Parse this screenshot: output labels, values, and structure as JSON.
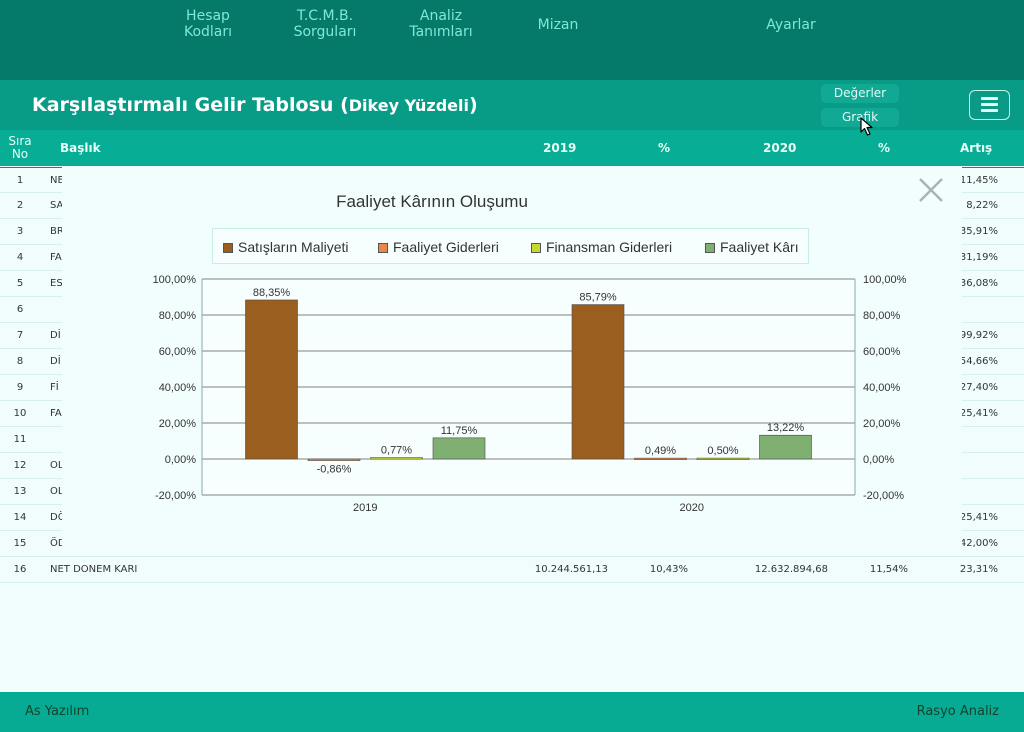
{
  "nav": {
    "hesap": "Hesap\nKodları",
    "tcmb": "T.C.M.B.\nSorguları",
    "analiz": "Analiz\nTanımları",
    "mizan": "Mizan",
    "ayarlar": "Ayarlar"
  },
  "header": {
    "title_main": "Karşılaştırmalı Gelir Tablosu",
    "title_paren_open": "(",
    "title_sub": "Dikey Yüzdeli",
    "title_paren_close": ")",
    "values_button": "Değerler",
    "chart_button": "Grafik"
  },
  "table": {
    "headers": {
      "sira": "Sıra\nNo",
      "baslik": "Başlık",
      "y2019": "2019",
      "pct1": "%",
      "y2020": "2020",
      "pct2": "%",
      "artis": "Artış"
    },
    "rows": [
      {
        "no": "1",
        "title": "NE",
        "artis": "11,45%"
      },
      {
        "no": "2",
        "title": "SA",
        "artis": "8,22%"
      },
      {
        "no": "3",
        "title": "BR",
        "artis": "35,91%"
      },
      {
        "no": "4",
        "title": "FA",
        "artis": "31,19%"
      },
      {
        "no": "5",
        "title": "ES",
        "artis": "36,08%"
      },
      {
        "no": "6",
        "title": "",
        "artis": ""
      },
      {
        "no": "7",
        "title": "Dİ",
        "artis": "99,92%"
      },
      {
        "no": "8",
        "title": "Dİ",
        "artis": "54,66%"
      },
      {
        "no": "9",
        "title": "Fİ",
        "artis": "27,40%"
      },
      {
        "no": "10",
        "title": "FA",
        "artis": "25,41%"
      },
      {
        "no": "11",
        "title": "",
        "artis": ""
      },
      {
        "no": "12",
        "title": "OL",
        "artis": ""
      },
      {
        "no": "13",
        "title": "OL",
        "artis": ""
      },
      {
        "no": "14",
        "title": "DÖ",
        "artis": "25,41%"
      },
      {
        "no": "15",
        "title": "ÖD",
        "artis": "42,00%"
      },
      {
        "no": "16",
        "title": "NET DONEM KARI",
        "v2019": "10.244.561,13",
        "p2019": "10,43%",
        "v2020": "12.632.894,68",
        "p2020": "11,54%",
        "artis": "23,31%"
      }
    ]
  },
  "chart_data": {
    "type": "bar",
    "title": "Faaliyet Kârının Oluşumu",
    "categories": [
      "2019",
      "2020"
    ],
    "series": [
      {
        "name": "Satışların Maliyeti",
        "color": "#9a5e1f",
        "values": [
          88.35,
          85.79
        ],
        "labels": [
          "88,35%",
          "85,79%"
        ]
      },
      {
        "name": "Faaliyet Giderleri",
        "color": "#e8894a",
        "values": [
          -0.86,
          0.49
        ],
        "labels": [
          "-0,86%",
          "0,49%"
        ]
      },
      {
        "name": "Finansman Giderleri",
        "color": "#c8d832",
        "values": [
          0.77,
          0.5
        ],
        "labels": [
          "0,77%",
          "0,50%"
        ]
      },
      {
        "name": "Faaliyet Kârı",
        "color": "#80b071",
        "values": [
          11.75,
          13.22
        ],
        "labels": [
          "11,75%",
          "13,22%"
        ]
      }
    ],
    "ylim": [
      -20,
      100
    ],
    "ytick_values": [
      100,
      80,
      60,
      40,
      20,
      0,
      -20
    ],
    "yticks": [
      "100,00%",
      "80,00%",
      "60,00%",
      "40,00%",
      "20,00%",
      "0,00%",
      "-20,00%"
    ],
    "grid": true,
    "legend": "top"
  },
  "footer": {
    "left": "As Yazılım",
    "right": "Rasyo Analiz"
  }
}
